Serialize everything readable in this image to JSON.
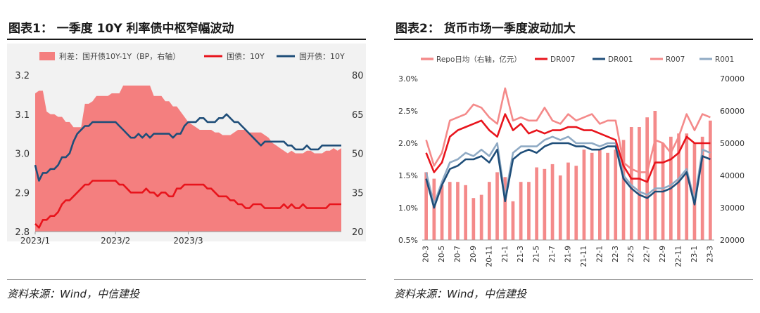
{
  "left": {
    "title": "图表1：  一季度 10Y 利率债中枢窄幅波动",
    "source": "资料来源：Wind，中信建投",
    "chart_data": {
      "type": "area+line",
      "legend": [
        "利差：国开债10Y-1Y（BP，右轴）",
        "国债：10Y",
        "国开债：10Y"
      ],
      "colors": {
        "spread": "#f47f7f",
        "gov": "#e8141c",
        "cdb": "#1f4e79"
      },
      "y_left": {
        "min": 2.8,
        "max": 3.2,
        "ticks": [
          "2.8",
          "2.9",
          "3.0",
          "3.1",
          "3.2"
        ]
      },
      "y_right": {
        "min": 20,
        "max": 80,
        "ticks": [
          "20",
          "35",
          "50",
          "65",
          "80"
        ]
      },
      "x_ticks": [
        {
          "label": "2023/1",
          "i": 0
        },
        {
          "label": "2023/2",
          "i": 21
        },
        {
          "label": "2023/3",
          "i": 40
        }
      ],
      "spread": [
        73,
        74,
        74,
        66,
        65,
        65,
        64,
        64,
        62,
        62,
        60,
        60,
        60,
        69,
        69,
        70,
        72,
        72,
        72,
        72,
        73,
        73,
        73,
        76,
        76,
        76,
        76,
        76,
        76,
        76,
        76,
        72,
        72,
        72,
        70,
        70,
        68,
        68,
        66,
        64,
        62,
        61,
        60,
        59,
        59,
        59,
        59,
        58,
        58,
        57,
        57,
        57,
        58,
        59,
        59,
        59,
        58,
        58,
        58,
        58,
        57,
        56,
        54,
        53,
        52,
        51,
        50,
        51,
        50,
        50,
        50,
        51,
        51,
        50,
        50,
        50,
        51,
        51,
        52,
        51,
        52
      ],
      "gov": [
        2.82,
        2.81,
        2.83,
        2.83,
        2.84,
        2.84,
        2.85,
        2.87,
        2.88,
        2.88,
        2.89,
        2.9,
        2.91,
        2.92,
        2.92,
        2.93,
        2.93,
        2.93,
        2.93,
        2.93,
        2.93,
        2.93,
        2.92,
        2.92,
        2.91,
        2.9,
        2.9,
        2.9,
        2.9,
        2.91,
        2.9,
        2.9,
        2.89,
        2.9,
        2.9,
        2.89,
        2.89,
        2.91,
        2.91,
        2.92,
        2.92,
        2.92,
        2.92,
        2.92,
        2.92,
        2.91,
        2.91,
        2.9,
        2.89,
        2.89,
        2.89,
        2.88,
        2.88,
        2.87,
        2.87,
        2.86,
        2.86,
        2.87,
        2.87,
        2.87,
        2.86,
        2.86,
        2.86,
        2.86,
        2.86,
        2.87,
        2.86,
        2.87,
        2.86,
        2.86,
        2.87,
        2.86,
        2.86,
        2.86,
        2.86,
        2.86,
        2.86,
        2.87,
        2.87,
        2.87,
        2.87
      ],
      "cdb": [
        2.97,
        2.93,
        2.95,
        2.95,
        2.96,
        2.96,
        2.97,
        2.99,
        2.99,
        3.0,
        3.03,
        3.05,
        3.06,
        3.07,
        3.07,
        3.08,
        3.08,
        3.08,
        3.08,
        3.08,
        3.08,
        3.08,
        3.07,
        3.06,
        3.05,
        3.04,
        3.04,
        3.05,
        3.04,
        3.05,
        3.04,
        3.05,
        3.05,
        3.05,
        3.05,
        3.05,
        3.04,
        3.05,
        3.05,
        3.07,
        3.08,
        3.08,
        3.08,
        3.09,
        3.09,
        3.08,
        3.08,
        3.08,
        3.09,
        3.09,
        3.1,
        3.09,
        3.08,
        3.08,
        3.07,
        3.06,
        3.05,
        3.04,
        3.03,
        3.02,
        3.03,
        3.03,
        3.03,
        3.03,
        3.03,
        3.03,
        3.02,
        3.02,
        3.01,
        3.01,
        3.01,
        3.02,
        3.01,
        3.01,
        3.01,
        3.02,
        3.02,
        3.02,
        3.02,
        3.02,
        3.02
      ]
    }
  },
  "right": {
    "title": "图表2：  货币市场一季度波动加大",
    "source": "资料来源：Wind，中信建投",
    "chart_data": {
      "type": "bar+line",
      "legend": [
        "Repo日均（右轴，亿元）",
        "DR007",
        "DR001",
        "R007",
        "R001"
      ],
      "colors": {
        "repo": "#f48a8a",
        "DR007": "#e8141c",
        "DR001": "#1f4e79",
        "R007": "#f48a8a",
        "R001": "#8faac4"
      },
      "y_left": {
        "min": 0.5,
        "max": 3.0,
        "ticks": [
          "0.5%",
          "1.0%",
          "1.5%",
          "2.0%",
          "2.5%",
          "3.0%"
        ]
      },
      "y_right": {
        "min": 20000,
        "max": 70000,
        "ticks": [
          "20000",
          "30000",
          "40000",
          "50000",
          "60000",
          "70000"
        ]
      },
      "categories": [
        "20-3",
        "20-4",
        "20-5",
        "20-6",
        "20-7",
        "20-8",
        "20-9",
        "20-10",
        "20-11",
        "20-12",
        "21-1",
        "21-2",
        "21-3",
        "21-4",
        "21-5",
        "21-6",
        "21-7",
        "21-8",
        "21-9",
        "21-10",
        "21-11",
        "21-12",
        "22-1",
        "22-2",
        "22-3",
        "22-4",
        "22-5",
        "22-6",
        "22-7",
        "22-8",
        "22-9",
        "22-10",
        "22-11",
        "22-12",
        "23-1",
        "23-2",
        "23-3"
      ],
      "x_labels": [
        "20-3",
        "20-5",
        "20-7",
        "20-9",
        "20-11",
        "21-1",
        "21-3",
        "21-5",
        "21-7",
        "21-9",
        "21-11",
        "22-1",
        "22-3",
        "22-5",
        "22-7",
        "22-9",
        "22-11",
        "23-1",
        "23-3"
      ],
      "repo": [
        41000,
        39000,
        37000,
        38000,
        38000,
        37000,
        33000,
        34000,
        38000,
        41000,
        39500,
        32000,
        38000,
        38000,
        42500,
        42000,
        43500,
        40000,
        44000,
        43000,
        48000,
        47000,
        48000,
        47000,
        48000,
        51000,
        55000,
        55000,
        58000,
        60000,
        50000,
        52000,
        53000,
        53000,
        50000,
        52000,
        57000
      ],
      "DR007": [
        1.85,
        1.55,
        1.7,
        2.1,
        2.2,
        2.25,
        2.3,
        2.35,
        2.2,
        2.1,
        2.45,
        2.2,
        2.3,
        2.15,
        2.2,
        2.15,
        2.2,
        2.2,
        2.25,
        2.25,
        2.2,
        2.2,
        2.15,
        2.1,
        2.05,
        1.65,
        1.45,
        1.45,
        1.4,
        1.7,
        1.7,
        1.75,
        1.85,
        2.1,
        2.0,
        2.0,
        2.0
      ],
      "DR001": [
        1.45,
        1.0,
        1.35,
        1.6,
        1.65,
        1.75,
        1.75,
        1.8,
        1.7,
        1.9,
        1.1,
        1.75,
        1.85,
        1.9,
        1.85,
        1.95,
        2.0,
        2.0,
        2.0,
        1.95,
        1.95,
        1.9,
        1.9,
        1.95,
        1.95,
        1.45,
        1.3,
        1.2,
        1.15,
        1.25,
        1.25,
        1.3,
        1.4,
        1.55,
        1.05,
        1.8,
        1.75
      ],
      "R007": [
        2.05,
        1.65,
        1.85,
        2.35,
        2.4,
        2.45,
        2.6,
        2.55,
        2.4,
        2.3,
        2.85,
        2.35,
        2.4,
        2.35,
        2.35,
        2.55,
        2.35,
        2.3,
        2.45,
        2.35,
        2.4,
        2.45,
        2.3,
        2.35,
        2.35,
        1.7,
        1.6,
        1.55,
        1.55,
        2.05,
        2.0,
        1.85,
        2.1,
        2.45,
        2.2,
        2.45,
        2.4
      ],
      "R001": [
        1.55,
        1.05,
        1.4,
        1.7,
        1.75,
        1.85,
        1.8,
        1.9,
        1.8,
        2.0,
        1.15,
        1.85,
        1.95,
        1.95,
        1.95,
        2.05,
        2.1,
        2.05,
        2.1,
        2.0,
        2.0,
        2.0,
        1.95,
        2.0,
        2.0,
        1.5,
        1.35,
        1.25,
        1.2,
        1.3,
        1.3,
        1.35,
        1.45,
        1.6,
        1.1,
        1.9,
        1.85
      ]
    }
  }
}
